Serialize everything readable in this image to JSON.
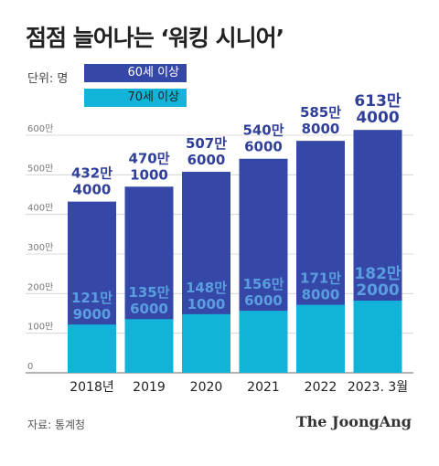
{
  "title": "점점 늘어나는 ‘워킹 시니어’",
  "unit_label": "단위: 명",
  "legend": [
    {
      "label": "60세 이상",
      "color": "#3548a8"
    },
    {
      "label": "70세 이상",
      "color": "#12b3d9"
    }
  ],
  "source": "자료: 통계청",
  "brand": "The JoongAng",
  "chart_data": {
    "type": "bar",
    "categories": [
      "2018년",
      "2019",
      "2020",
      "2021",
      "2022",
      "2023. 3월"
    ],
    "series": [
      {
        "name": "60세 이상",
        "values": [
          4324000,
          4701000,
          5076000,
          5406000,
          5858000,
          6134000
        ],
        "labels": [
          [
            "432만",
            "4000"
          ],
          [
            "470만",
            "1000"
          ],
          [
            "507만",
            "6000"
          ],
          [
            "540만",
            "6000"
          ],
          [
            "585만",
            "8000"
          ],
          [
            "613만",
            "4000"
          ]
        ]
      },
      {
        "name": "70세 이상",
        "values": [
          1219000,
          1356000,
          1481000,
          1566000,
          1718000,
          1822000
        ],
        "labels": [
          [
            "121만",
            "9000"
          ],
          [
            "135만",
            "6000"
          ],
          [
            "148만",
            "1000"
          ],
          [
            "156만",
            "6000"
          ],
          [
            "171만",
            "8000"
          ],
          [
            "182만",
            "2000"
          ]
        ]
      }
    ],
    "yticks": [
      "0",
      "100만",
      "200만",
      "300만",
      "400만",
      "500만",
      "600만"
    ],
    "ylim": [
      0,
      6000000
    ],
    "grid": true,
    "legend_position": "top-left",
    "colors": {
      "series1": "#3548a8",
      "series2": "#12b3d9",
      "label_series1": "#2f3f9a",
      "label_series2": "#5a9ee0"
    }
  }
}
